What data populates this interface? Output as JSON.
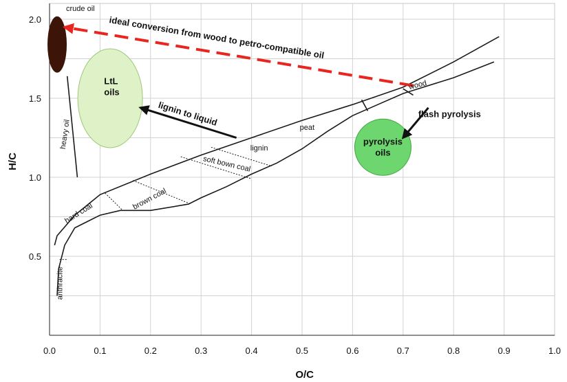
{
  "chart_data": {
    "type": "van-krevelen-diagram",
    "xlabel": "O/C",
    "ylabel": "H/C",
    "xlim": [
      0.0,
      1.0
    ],
    "ylim": [
      0.0,
      2.1
    ],
    "x_ticks": [
      "0.0",
      "0.1",
      "0.2",
      "0.3",
      "0.4",
      "0.5",
      "0.6",
      "0.7",
      "0.8",
      "0.9",
      "1.0"
    ],
    "y_ticks": [
      "0.5",
      "1.0",
      "1.5",
      "2.0"
    ],
    "grid": true,
    "colors": {
      "crude_oil": "#3d1408",
      "ideal_arrow": "#e8251f",
      "ltl_fill": "#dff2c7",
      "pyrolysis_fill": "#6ed66e",
      "lines": "#1a1a1a"
    },
    "regions": [
      {
        "label": "crude oil",
        "x": 0.015,
        "y": 1.84
      },
      {
        "label": "LtL oils",
        "x": 0.12,
        "y": 1.5
      },
      {
        "label": "pyrolysis oils",
        "x": 0.66,
        "y": 1.18
      },
      {
        "label": "heavy oil",
        "x": 0.035,
        "y": 1.27
      },
      {
        "label": "anthracite",
        "x": 0.025,
        "y": 0.33
      },
      {
        "label": "hard coal",
        "x": 0.06,
        "y": 0.76
      },
      {
        "label": "brown coal",
        "x": 0.2,
        "y": 0.85
      },
      {
        "label": "soft bown coal",
        "x": 0.35,
        "y": 1.07
      },
      {
        "label": "lignin",
        "x": 0.415,
        "y": 1.17
      },
      {
        "label": "peat",
        "x": 0.51,
        "y": 1.3
      },
      {
        "label": "wood",
        "x": 0.73,
        "y": 1.57
      }
    ],
    "annotations": [
      {
        "text": "ideal conversion from wood to petro-compatible oil",
        "from": [
          0.72,
          1.58
        ],
        "to": [
          0.03,
          1.95
        ]
      },
      {
        "text": "lignin to liquid",
        "from": [
          0.37,
          1.25
        ],
        "to": [
          0.18,
          1.44
        ]
      },
      {
        "text": "flash pyrolysis",
        "from": [
          0.75,
          1.44
        ],
        "to": [
          0.7,
          1.25
        ]
      }
    ],
    "envelope_upper": [
      [
        0.01,
        0.57
      ],
      [
        0.015,
        0.63
      ],
      [
        0.05,
        0.76
      ],
      [
        0.1,
        0.89
      ],
      [
        0.2,
        1.02
      ],
      [
        0.3,
        1.14
      ],
      [
        0.4,
        1.25
      ],
      [
        0.5,
        1.36
      ],
      [
        0.6,
        1.46
      ],
      [
        0.7,
        1.57
      ],
      [
        0.8,
        1.73
      ],
      [
        0.89,
        1.89
      ]
    ],
    "envelope_lower": [
      [
        0.015,
        0.25
      ],
      [
        0.018,
        0.42
      ],
      [
        0.03,
        0.57
      ],
      [
        0.05,
        0.68
      ],
      [
        0.1,
        0.76
      ],
      [
        0.14,
        0.79
      ],
      [
        0.2,
        0.79
      ],
      [
        0.275,
        0.83
      ],
      [
        0.3,
        0.87
      ],
      [
        0.35,
        0.94
      ],
      [
        0.4,
        1.02
      ],
      [
        0.45,
        1.09
      ],
      [
        0.5,
        1.18
      ],
      [
        0.55,
        1.29
      ],
      [
        0.6,
        1.39
      ],
      [
        0.65,
        1.46
      ],
      [
        0.7,
        1.53
      ],
      [
        0.8,
        1.63
      ],
      [
        0.88,
        1.73
      ]
    ],
    "heavy_oil_line": [
      [
        0.035,
        1.64
      ],
      [
        0.055,
        1.0
      ]
    ],
    "separators_dotted": [
      [
        [
          0.11,
          0.9
        ],
        [
          0.145,
          0.79
        ]
      ],
      [
        [
          0.165,
          0.98
        ],
        [
          0.28,
          0.83
        ]
      ],
      [
        [
          0.26,
          1.13
        ],
        [
          0.4,
          0.99
        ]
      ],
      [
        [
          0.32,
          1.19
        ],
        [
          0.44,
          1.07
        ]
      ],
      [
        [
          0.02,
          0.48
        ],
        [
          0.035,
          0.48
        ]
      ]
    ],
    "separators_solid": [
      [
        [
          0.618,
          1.49
        ],
        [
          0.63,
          1.42
        ]
      ],
      [
        [
          0.7,
          1.56
        ],
        [
          0.72,
          1.52
        ]
      ]
    ]
  }
}
